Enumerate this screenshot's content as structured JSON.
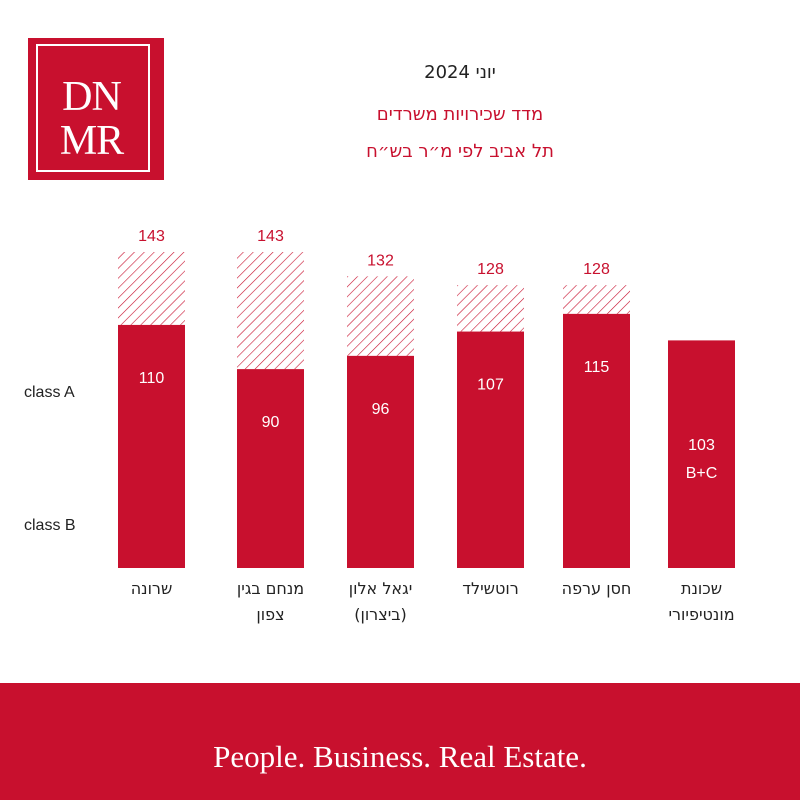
{
  "logo": {
    "line1": "DN",
    "line2": "MR"
  },
  "header": {
    "date": "יוני 2024",
    "title": "מדד שכירויות משרדים",
    "subtitle": "תל אביב לפי מ״ר בש״ח"
  },
  "colors": {
    "accent": "#c8102e",
    "text": "#222222",
    "background": "#ffffff",
    "footer_text": "#ffffff"
  },
  "footer": {
    "tagline": "People. Business. Real Estate."
  },
  "chart_data": {
    "type": "bar",
    "ylabels": [
      "class A",
      "class B"
    ],
    "categories": [
      [
        "שרונה"
      ],
      [
        "מנחם בגין",
        "צפון"
      ],
      [
        "יגאל אלון",
        "(ביצרון)"
      ],
      [
        "רוטשילד"
      ],
      [
        "חסן ערפה"
      ],
      [
        "שכונת",
        "מונטיפיורי"
      ]
    ],
    "series": [
      {
        "name": "class A",
        "values": [
          143,
          143,
          132,
          128,
          128,
          null
        ]
      },
      {
        "name": "class B",
        "values": [
          110,
          90,
          96,
          107,
          115,
          103
        ]
      }
    ],
    "annotations": [
      {
        "category_index": 5,
        "text": "B+C"
      }
    ],
    "ylim": [
      0,
      150
    ],
    "grid": false,
    "legend": "none"
  }
}
